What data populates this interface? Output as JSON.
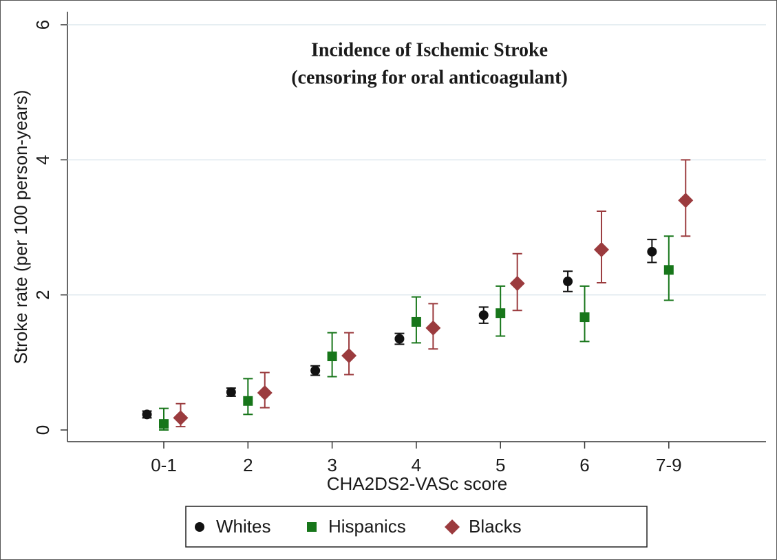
{
  "chart_data": {
    "type": "errorbar",
    "title": [
      "Incidence of Ischemic Stroke",
      "(censoring for oral anticoagulant)"
    ],
    "x_label": "CHA2DS2-VASc score",
    "y_label": "Stroke rate (per 100 person-years)",
    "categories": [
      "0-1",
      "2",
      "3",
      "4",
      "5",
      "6",
      "7-9"
    ],
    "ylim": [
      0,
      6
    ],
    "yticks": [
      0,
      2,
      4,
      6
    ],
    "grid": true,
    "legend": "bottom",
    "series": [
      {
        "name": "Whites",
        "color": "#111111",
        "marker": "circle",
        "values": [
          0.23,
          0.56,
          0.88,
          1.35,
          1.7,
          2.2,
          2.64
        ],
        "ci_low": [
          0.18,
          0.5,
          0.81,
          1.27,
          1.58,
          2.05,
          2.48
        ],
        "ci_high": [
          0.28,
          0.62,
          0.95,
          1.43,
          1.82,
          2.35,
          2.82
        ]
      },
      {
        "name": "Hispanics",
        "color": "#17761a",
        "marker": "square",
        "values": [
          0.09,
          0.43,
          1.09,
          1.6,
          1.73,
          1.67,
          2.37
        ],
        "ci_low": [
          0.0,
          0.23,
          0.79,
          1.29,
          1.39,
          1.31,
          1.92
        ],
        "ci_high": [
          0.32,
          0.76,
          1.44,
          1.97,
          2.13,
          2.13,
          2.87
        ]
      },
      {
        "name": "Blacks",
        "color": "#9b3b3e",
        "marker": "diamond",
        "values": [
          0.18,
          0.55,
          1.1,
          1.51,
          2.17,
          2.67,
          3.4
        ],
        "ci_low": [
          0.05,
          0.33,
          0.82,
          1.2,
          1.77,
          2.18,
          2.87
        ],
        "ci_high": [
          0.39,
          0.85,
          1.44,
          1.87,
          2.61,
          3.24,
          4.0
        ]
      }
    ]
  }
}
